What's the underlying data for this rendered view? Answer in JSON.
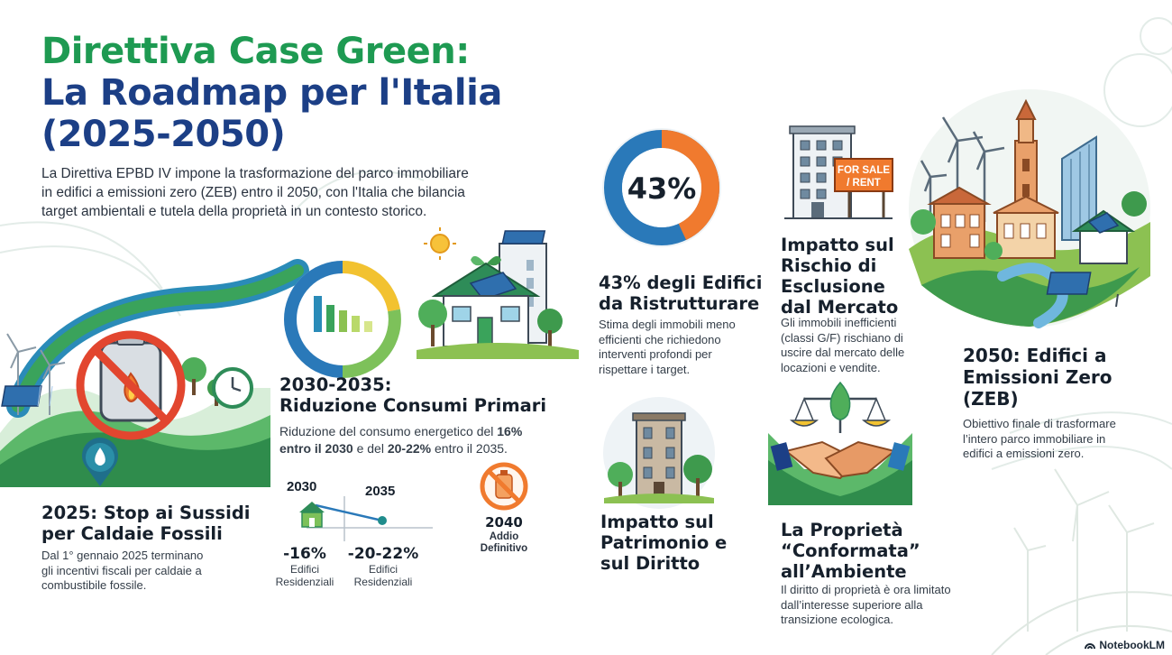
{
  "title": {
    "line1": "Direttiva Case Green:",
    "line2": "La Roadmap per l'Italia",
    "line3": "(2025-2050)"
  },
  "intro": {
    "line1": "La Direttiva EPBD IV impone la trasformazione del parco immobiliare",
    "line2": "in edifici a emissioni zero (ZEB) entro il 2050, con l'Italia che bilancia",
    "line3": "target ambientali e tutela della proprietà in un contesto storico."
  },
  "sections": {
    "s2025": {
      "heading1": "2025: Stop ai Sussidi",
      "heading2": "per Caldaie Fossili",
      "text1": "Dal 1° gennaio 2025 terminano",
      "text2": "gli incentivi fiscali per caldaie a",
      "text3": "combustibile fossile."
    },
    "s2030": {
      "heading1": "2030-2035:",
      "heading2": "Riduzione Consumi Primari",
      "text_a": "Riduzione del consumo energetico del ",
      "text_b": "16%",
      "text_c": "entro il 2030",
      "text_d": " e del ",
      "text_e": "20-22%",
      "text_f": " entro il 2035.",
      "year_a": "2030",
      "year_b": "2035",
      "pct_a": "-16%",
      "pct_b": "-20-22%",
      "label_a1": "Edifici",
      "label_a2": "Residenziali",
      "label_b1": "Edifici",
      "label_b2": "Residenziali",
      "milestone_year": "2040",
      "milestone_l1": "Addio",
      "milestone_l2": "Definitivo"
    },
    "s43": {
      "donut_label": "43%",
      "heading1": "43% degli Edifici",
      "heading2": "da Ristrutturare",
      "text1": "Stima degli immobili meno",
      "text2": "efficienti che richiedono",
      "text3": "interventi profondi per",
      "text4": "rispettare i target."
    },
    "patrimonio": {
      "heading1": "Impatto sul",
      "heading2": "Patrimonio e",
      "heading3": "sul Diritto"
    },
    "mercato": {
      "sign1": "FOR SALE",
      "sign2": "/ RENT",
      "heading1": "Impatto sul",
      "heading2": "Rischio di",
      "heading3": "Esclusione",
      "heading4": "dal Mercato",
      "text1": "Gli immobili inefficienti",
      "text2": "(classi G/F) rischiano di",
      "text3": "uscire dal mercato delle",
      "text4": "locazioni e vendite."
    },
    "proprieta": {
      "heading1": "La Proprietà",
      "heading2": "“Conformata”",
      "heading3": "all’Ambiente",
      "text1": "Il diritto di proprietà è ora limitato",
      "text2": "dall’interesse superiore alla",
      "text3": "transizione ecologica."
    },
    "s2050": {
      "heading1": "2050: Edifici a",
      "heading2": "Emissioni Zero",
      "heading3": "(ZEB)",
      "text1": "Obiettivo finale di trasformare",
      "text2": "l’intero parco immobiliare in",
      "text3": "edifici a emissioni zero."
    }
  },
  "footer": {
    "brand": "NotebookLM"
  },
  "donut": {
    "share": 0.43,
    "color_share": "#f07a2e",
    "color_rest": "#2a79b9"
  },
  "colors": {
    "green": "#1e9a52",
    "blue": "#1c3f86",
    "orange": "#f07a2e"
  }
}
